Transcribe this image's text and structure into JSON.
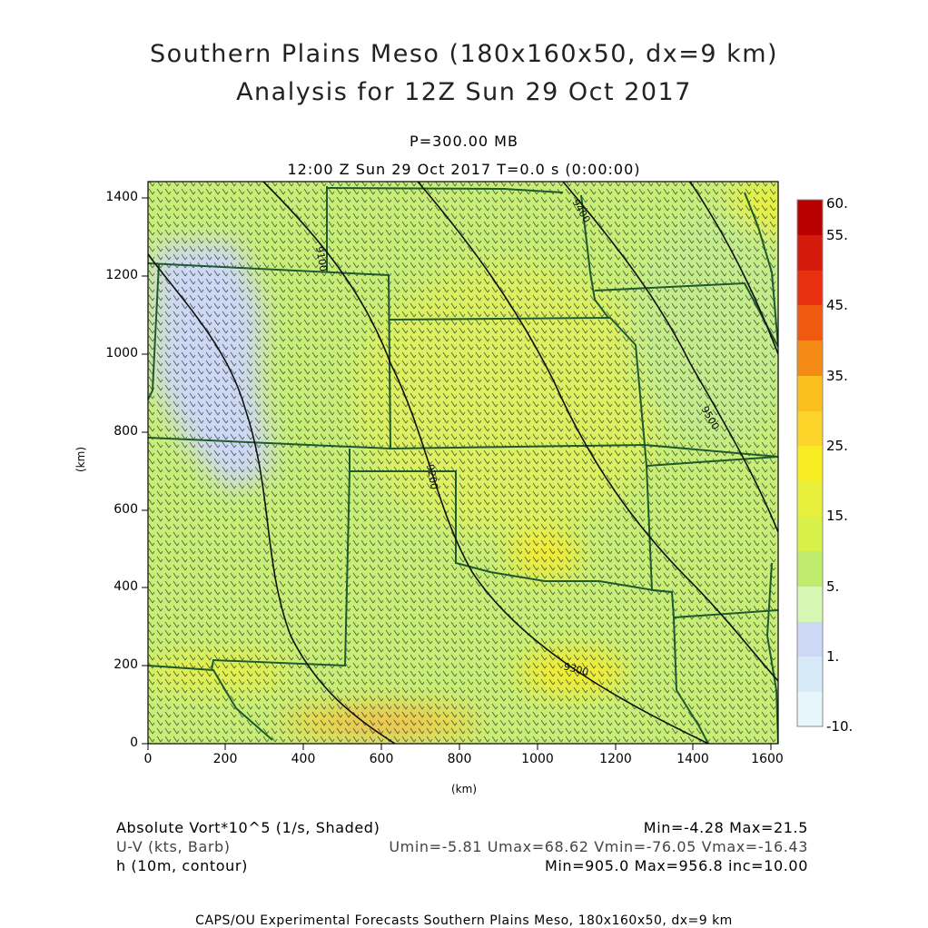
{
  "header": {
    "title_line1": "Southern Plains Meso (180x160x50, dx=9 km)",
    "title_line2": "Analysis for 12Z Sun 29 Oct 2017",
    "level": "P=300.00 MB",
    "time": "12:00 Z Sun 29 Oct 2017    T=0.0 s (0:00:00)"
  },
  "axes": {
    "x_ticks": [
      "0",
      "200",
      "400",
      "600",
      "800",
      "1000",
      "1200",
      "1400",
      "1600"
    ],
    "y_ticks": [
      "0",
      "200",
      "400",
      "600",
      "800",
      "1000",
      "1200",
      "1400"
    ],
    "x_unit": "(km)",
    "y_unit": "(km)",
    "x_range": [
      0,
      1620
    ],
    "y_range": [
      0,
      1440
    ]
  },
  "colorbar": {
    "labels": [
      "60.",
      "55.",
      "45.",
      "35.",
      "25.",
      "15.",
      "5.",
      "1.",
      "-10."
    ],
    "colors": [
      "#b80000",
      "#d41a0a",
      "#e83010",
      "#f05a10",
      "#f58a14",
      "#fbbf1e",
      "#f0f028",
      "#d7f04a",
      "#c0ec6e",
      "#d6f8b4",
      "#cdd8f6",
      "#d6eaf8",
      "#e6f6fb"
    ]
  },
  "contours": {
    "labels": [
      "9100",
      "9200",
      "9300",
      "9400",
      "9500"
    ]
  },
  "legend": {
    "line1_left": "Absolute Vort*10^5 (1/s, Shaded)",
    "line1_right": "Min=-4.28 Max=21.5",
    "line2_left": "U-V (kts, Barb)",
    "line2_right": "Umin=-5.81 Umax=68.62 Vmin=-76.05 Vmax=-16.43",
    "line3_left": "h (10m, contour)",
    "line3_right": "Min=905.0 Max=956.8 inc=10.00"
  },
  "footer": "CAPS/OU Experimental Forecasts  Southern Plains Meso, 180x160x50, dx=9 km"
}
